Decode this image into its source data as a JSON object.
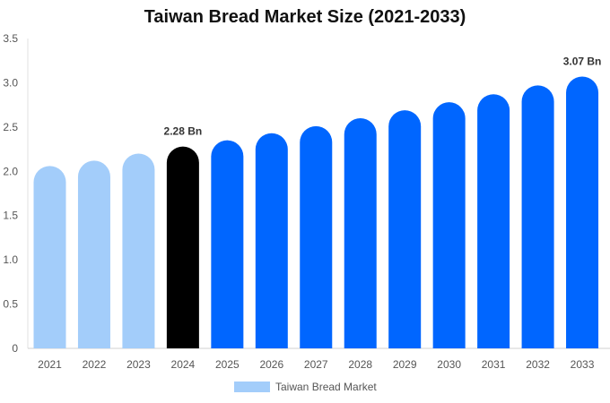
{
  "chart_data": {
    "type": "bar",
    "title": "Taiwan Bread Market Size (2021-2033)",
    "categories": [
      "2021",
      "2022",
      "2023",
      "2024",
      "2025",
      "2026",
      "2027",
      "2028",
      "2029",
      "2030",
      "2031",
      "2032",
      "2033"
    ],
    "values": [
      2.06,
      2.12,
      2.2,
      2.28,
      2.35,
      2.43,
      2.51,
      2.6,
      2.69,
      2.78,
      2.87,
      2.97,
      3.07
    ],
    "colors": [
      "#a3cdfa",
      "#a3cdfa",
      "#a3cdfa",
      "#000000",
      "#0066ff",
      "#0066ff",
      "#0066ff",
      "#0066ff",
      "#0066ff",
      "#0066ff",
      "#0066ff",
      "#0066ff",
      "#0066ff"
    ],
    "data_labels": [
      {
        "index": 3,
        "text": "2.28 Bn"
      },
      {
        "index": 12,
        "text": "3.07 Bn"
      }
    ],
    "ylim": [
      0,
      3.5
    ],
    "yticks": [
      "0",
      "0.5",
      "1.0",
      "1.5",
      "2.0",
      "2.5",
      "3.0",
      "3.5"
    ],
    "ytick_values": [
      0,
      0.5,
      1.0,
      1.5,
      2.0,
      2.5,
      3.0,
      3.5
    ],
    "grid": false,
    "legend": {
      "label": "Taiwan Bread Market",
      "color": "#a3cdfa",
      "placement": "bottom-center"
    }
  }
}
